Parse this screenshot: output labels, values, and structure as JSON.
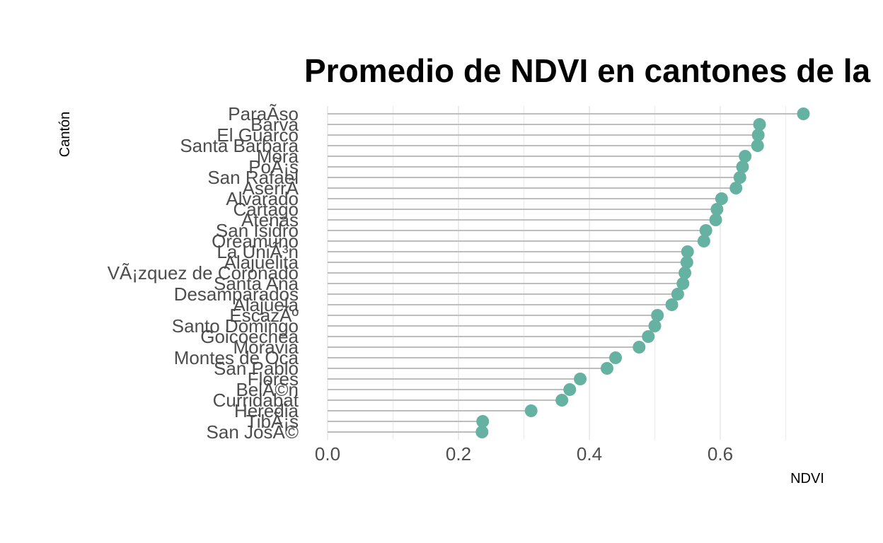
{
  "chart_data": {
    "type": "lollipop",
    "title": "Promedio de NDVI en cantones de la",
    "xlabel": "NDVI",
    "ylabel": "Cantón",
    "xlim": [
      0,
      0.76
    ],
    "xticks": [
      0.0,
      0.2,
      0.4,
      0.6
    ],
    "xtick_labels": [
      "0.0",
      "0.2",
      "0.4",
      "0.6"
    ],
    "grid": true,
    "point_color": "#66b2a2",
    "stem_color": "#bdbdbd",
    "categories": [
      "ParaÃ­so",
      "Barva",
      "El Guarco",
      "Santa Barbara",
      "Mora",
      "PoÃ¡s",
      "San Rafael",
      "AserrÃ­",
      "Alvarado",
      "Cartago",
      "Atenas",
      "San Isidro",
      "Oreamuno",
      "La UniÃ³n",
      "Alajuelita",
      "VÃ¡zquez de Coronado",
      "Santa Ana",
      "Desamparados",
      "Alajuela",
      "EscazÃº",
      "Santo Domingo",
      "Goicoechea",
      "Moravia",
      "Montes de Oca",
      "San Pablo",
      "Flores",
      "BelÃ©n",
      "Curridabat",
      "Heredia",
      "TibÃ¡s",
      "San JosÃ©"
    ],
    "values": [
      0.727,
      0.66,
      0.658,
      0.657,
      0.638,
      0.634,
      0.63,
      0.624,
      0.602,
      0.595,
      0.593,
      0.578,
      0.575,
      0.55,
      0.549,
      0.546,
      0.543,
      0.535,
      0.526,
      0.504,
      0.5,
      0.49,
      0.476,
      0.44,
      0.427,
      0.386,
      0.37,
      0.358,
      0.311,
      0.237,
      0.236
    ]
  }
}
